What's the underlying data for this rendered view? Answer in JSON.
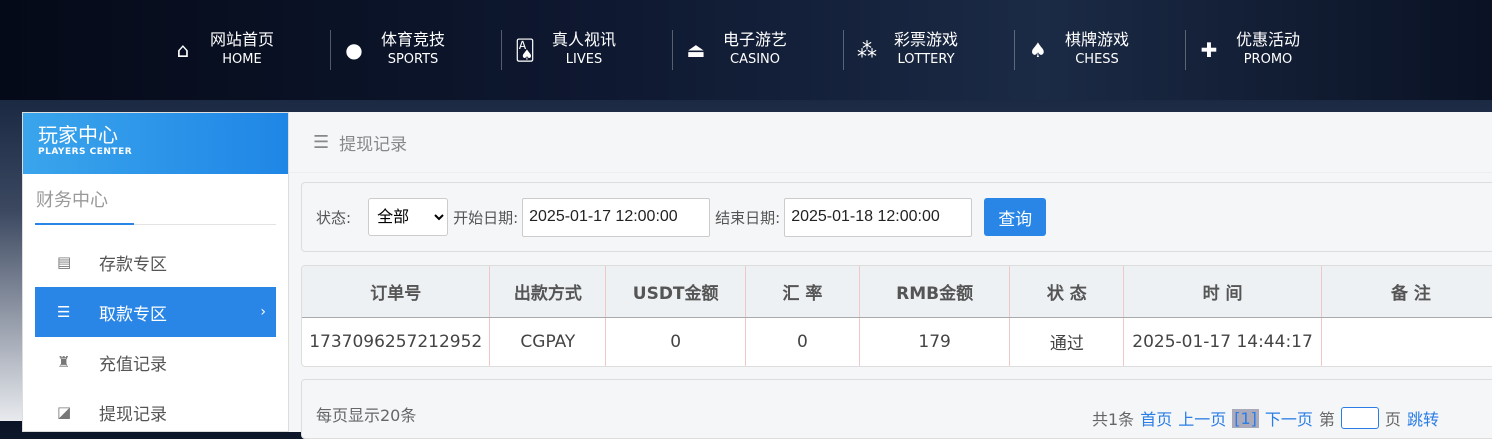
{
  "nav": [
    {
      "cn": "网站首页",
      "en": "HOME",
      "icon": "home-icon"
    },
    {
      "cn": "体育竞技",
      "en": "SPORTS",
      "icon": "ball-icon"
    },
    {
      "cn": "真人视讯",
      "en": "LIVES",
      "icon": "cards-icon"
    },
    {
      "cn": "电子游艺",
      "en": "CASINO",
      "icon": "joystick-icon"
    },
    {
      "cn": "彩票游戏",
      "en": "LOTTERY",
      "icon": "lottery-balls-icon"
    },
    {
      "cn": "棋牌游戏",
      "en": "CHESS",
      "icon": "spade-icon"
    },
    {
      "cn": "优惠活动",
      "en": "PROMO",
      "icon": "gift-icon"
    }
  ],
  "sidebar": {
    "title": "玩家中心",
    "subtitle": "PLAYERS CENTER",
    "section": "财务中心",
    "items": [
      {
        "label": "存款专区",
        "icon": "card-icon"
      },
      {
        "label": "取款专区",
        "icon": "hand-money-icon",
        "active": true
      },
      {
        "label": "充值记录",
        "icon": "money-bag-icon"
      },
      {
        "label": "提现记录",
        "icon": "wallet-icon"
      }
    ]
  },
  "breadcrumb": "提现记录",
  "filter": {
    "status_label": "状态:",
    "status_value": "全部",
    "start_label": "开始日期:",
    "start_value": "2025-01-17 12:00:00",
    "end_label": "结束日期:",
    "end_value": "2025-01-18 12:00:00",
    "query": "查询"
  },
  "table": {
    "headers": [
      "订单号",
      "出款方式",
      "USDT金额",
      "汇 率",
      "RMB金额",
      "状 态",
      "时 间",
      "备 注"
    ],
    "rows": [
      [
        "1737096257212952",
        "CGPAY",
        "0",
        "0",
        "179",
        "通过",
        "2025-01-17 14:44:17",
        ""
      ]
    ]
  },
  "pager": {
    "per_page": "每页显示20条",
    "total": "共1条",
    "first": "首页",
    "prev": "上一页",
    "current": "[1]",
    "next": "下一页",
    "page_prefix": "第",
    "page_suffix": "页",
    "jump": "跳转"
  },
  "colors": {
    "accent": "#2a86e6"
  }
}
